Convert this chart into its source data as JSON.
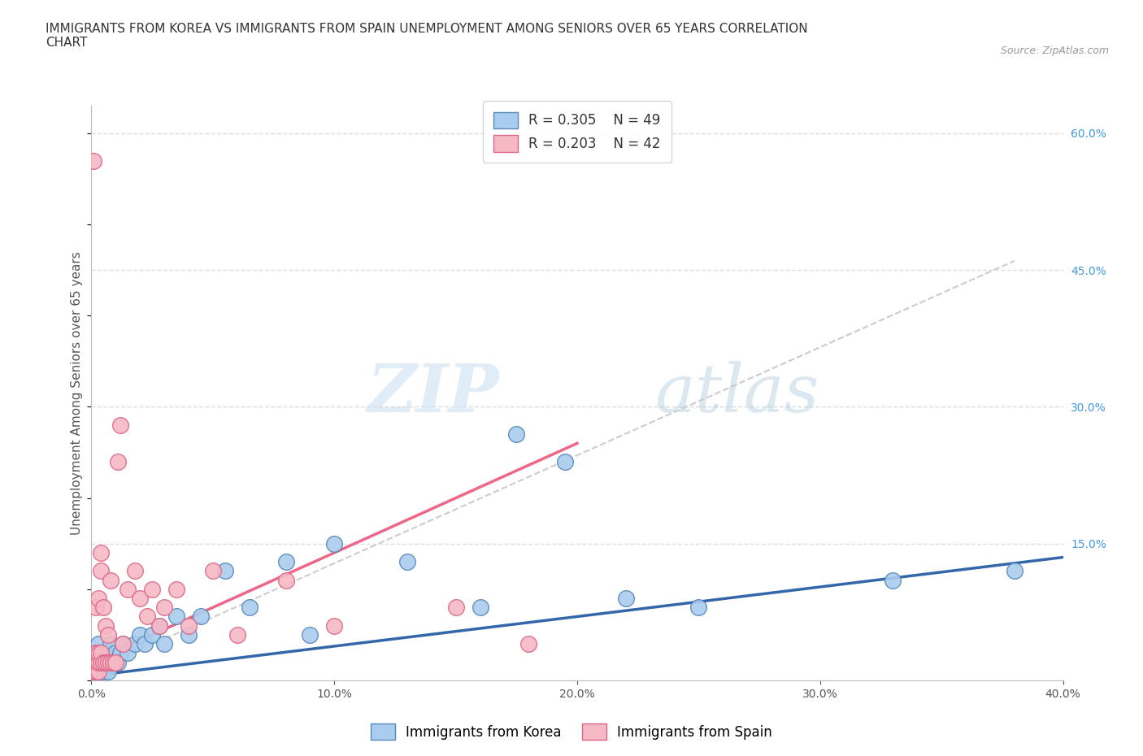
{
  "title": "IMMIGRANTS FROM KOREA VS IMMIGRANTS FROM SPAIN UNEMPLOYMENT AMONG SENIORS OVER 65 YEARS CORRELATION\nCHART",
  "source": "Source: ZipAtlas.com",
  "ylabel": "Unemployment Among Seniors over 65 years",
  "xlim": [
    0.0,
    0.4
  ],
  "ylim": [
    0.0,
    0.63
  ],
  "xtick_labels": [
    "0.0%",
    "10.0%",
    "20.0%",
    "30.0%",
    "40.0%"
  ],
  "xtick_values": [
    0.0,
    0.1,
    0.2,
    0.3,
    0.4
  ],
  "ytick_labels": [
    "15.0%",
    "30.0%",
    "45.0%",
    "60.0%"
  ],
  "ytick_values": [
    0.15,
    0.3,
    0.45,
    0.6
  ],
  "korea_color": "#aaccee",
  "spain_color": "#f5b8c4",
  "korea_edge_color": "#5588bb",
  "spain_edge_color": "#dd6688",
  "korea_trend_color": "#3366aa",
  "spain_trend_color": "#ee6688",
  "dashed_trend_color": "#cccccc",
  "watermark_color": "#d8eaf8",
  "legend_r_korea": "R = 0.305",
  "legend_n_korea": "N = 49",
  "legend_r_spain": "R = 0.203",
  "legend_n_spain": "N = 42",
  "legend_label_korea": "Immigrants from Korea",
  "legend_label_spain": "Immigrants from Spain",
  "korea_x": [
    0.001,
    0.001,
    0.002,
    0.002,
    0.002,
    0.003,
    0.003,
    0.003,
    0.003,
    0.004,
    0.004,
    0.004,
    0.005,
    0.005,
    0.005,
    0.006,
    0.006,
    0.007,
    0.007,
    0.008,
    0.008,
    0.009,
    0.01,
    0.011,
    0.012,
    0.013,
    0.015,
    0.018,
    0.02,
    0.022,
    0.025,
    0.028,
    0.03,
    0.035,
    0.04,
    0.045,
    0.055,
    0.065,
    0.08,
    0.09,
    0.1,
    0.13,
    0.16,
    0.175,
    0.195,
    0.22,
    0.25,
    0.33,
    0.38
  ],
  "korea_y": [
    0.01,
    0.02,
    0.01,
    0.02,
    0.03,
    0.01,
    0.02,
    0.03,
    0.04,
    0.01,
    0.02,
    0.03,
    0.01,
    0.02,
    0.03,
    0.02,
    0.03,
    0.01,
    0.03,
    0.02,
    0.04,
    0.02,
    0.03,
    0.02,
    0.03,
    0.04,
    0.03,
    0.04,
    0.05,
    0.04,
    0.05,
    0.06,
    0.04,
    0.07,
    0.05,
    0.07,
    0.12,
    0.08,
    0.13,
    0.05,
    0.15,
    0.13,
    0.08,
    0.27,
    0.24,
    0.09,
    0.08,
    0.11,
    0.12
  ],
  "spain_x": [
    0.001,
    0.001,
    0.001,
    0.002,
    0.002,
    0.002,
    0.003,
    0.003,
    0.003,
    0.003,
    0.004,
    0.004,
    0.004,
    0.004,
    0.005,
    0.005,
    0.006,
    0.006,
    0.007,
    0.007,
    0.008,
    0.008,
    0.009,
    0.01,
    0.011,
    0.012,
    0.013,
    0.015,
    0.018,
    0.02,
    0.023,
    0.025,
    0.028,
    0.03,
    0.035,
    0.04,
    0.05,
    0.06,
    0.08,
    0.1,
    0.15,
    0.18
  ],
  "spain_y": [
    0.01,
    0.02,
    0.57,
    0.01,
    0.03,
    0.08,
    0.01,
    0.02,
    0.03,
    0.09,
    0.02,
    0.03,
    0.12,
    0.14,
    0.02,
    0.08,
    0.02,
    0.06,
    0.02,
    0.05,
    0.02,
    0.11,
    0.02,
    0.02,
    0.24,
    0.28,
    0.04,
    0.1,
    0.12,
    0.09,
    0.07,
    0.1,
    0.06,
    0.08,
    0.1,
    0.06,
    0.12,
    0.05,
    0.11,
    0.06,
    0.08,
    0.04
  ],
  "background_color": "#ffffff",
  "grid_color": "#dddddd",
  "title_color": "#333333",
  "axis_label_color": "#555555",
  "tick_color": "#555555",
  "r_value_color": "#4499dd",
  "title_fontsize": 11,
  "axis_label_fontsize": 11,
  "tick_fontsize": 10,
  "legend_fontsize": 12
}
